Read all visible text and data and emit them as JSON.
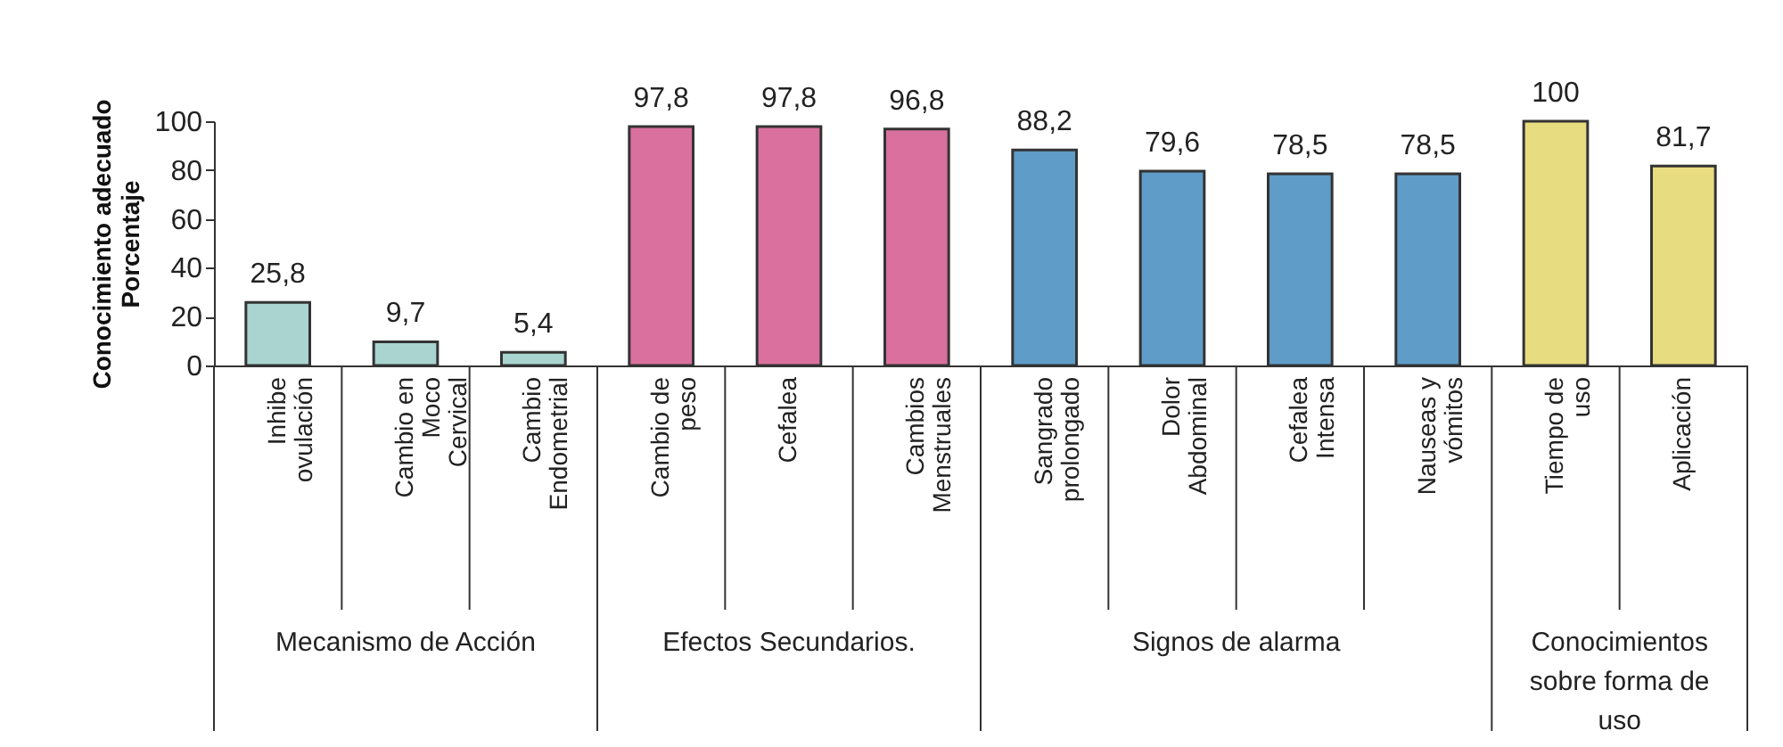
{
  "chart_data": {
    "type": "bar",
    "ylabel": "Conocimiento adecuado\nPorcentaje",
    "categories": [
      "Inhibe\novulación",
      "Cambio en\nMoco\nCervical",
      "Cambio\nEndometrial",
      "Cambio de\npeso",
      "Cefalea",
      "Cambios\nMenstruales",
      "Sangrado\nprolongado",
      "Dolor\nAbdominal",
      "Cefalea\nIntensa",
      "Nauseas y\nvómitos",
      "Tiempo de\nuso",
      "Aplicación"
    ],
    "values": [
      25.8,
      9.7,
      5.4,
      97.8,
      97.8,
      96.8,
      88.2,
      79.6,
      78.5,
      78.5,
      100,
      81.7
    ],
    "colors": [
      "#a9d4d0",
      "#a9d4d0",
      "#a9d4d0",
      "#d9709d",
      "#d9709d",
      "#d9709d",
      "#5f9cc8",
      "#5f9cc8",
      "#5f9cc8",
      "#5f9cc8",
      "#e8dc80",
      "#e8dc80"
    ],
    "annotations": [
      "Mecanismo de Acción",
      "Efectos Secundarios.",
      "Signos de alarma",
      "Conocimientos\nsobre forma de\nuso"
    ],
    "ylim": [
      0,
      100
    ],
    "yticks": [
      0,
      20,
      40,
      60,
      80,
      100
    ],
    "value_labels": [
      "25,8",
      "9,7",
      "5,4",
      "97,8",
      "97,8",
      "96,8",
      "88,2",
      "79,6",
      "78,5",
      "78,5",
      "100",
      "81,7"
    ],
    "grid": false
  }
}
